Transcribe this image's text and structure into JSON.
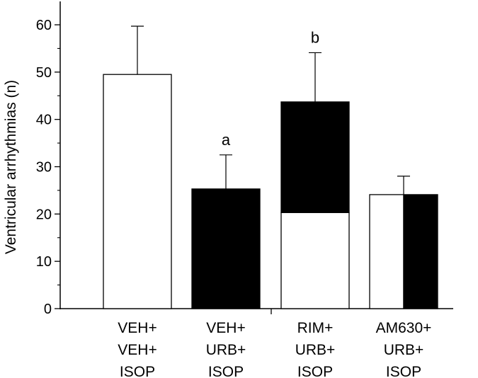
{
  "chart_data": {
    "type": "bar",
    "title": "",
    "xlabel": "",
    "ylabel": "Ventricular arrhythmias (n)",
    "ylim": [
      0,
      65
    ],
    "yticks": [
      0,
      10,
      20,
      30,
      40,
      50,
      60
    ],
    "grid": false,
    "legend": "none",
    "categories": [
      [
        "VEH+",
        "VEH+",
        "ISOP"
      ],
      [
        "VEH+",
        "URB+",
        "ISOP"
      ],
      [
        "RIM+",
        "URB+",
        "ISOP"
      ],
      [
        "AM630+",
        "URB+",
        "ISOP"
      ]
    ],
    "bars": [
      {
        "value": 49.5,
        "error": 10.2,
        "annotation": "",
        "fill": "white"
      },
      {
        "value": 25.3,
        "error": 7.2,
        "annotation": "a",
        "fill": "black"
      },
      {
        "value": 43.7,
        "error": 10.4,
        "annotation": "b",
        "fill": "split-vertical",
        "lower_white_to": 20.3
      },
      {
        "value": 24.1,
        "error": 3.9,
        "annotation": "",
        "fill": "split-horizontal"
      }
    ],
    "colors": {
      "dark": "#000000",
      "light": "#ffffff",
      "stroke": "#000000"
    }
  }
}
